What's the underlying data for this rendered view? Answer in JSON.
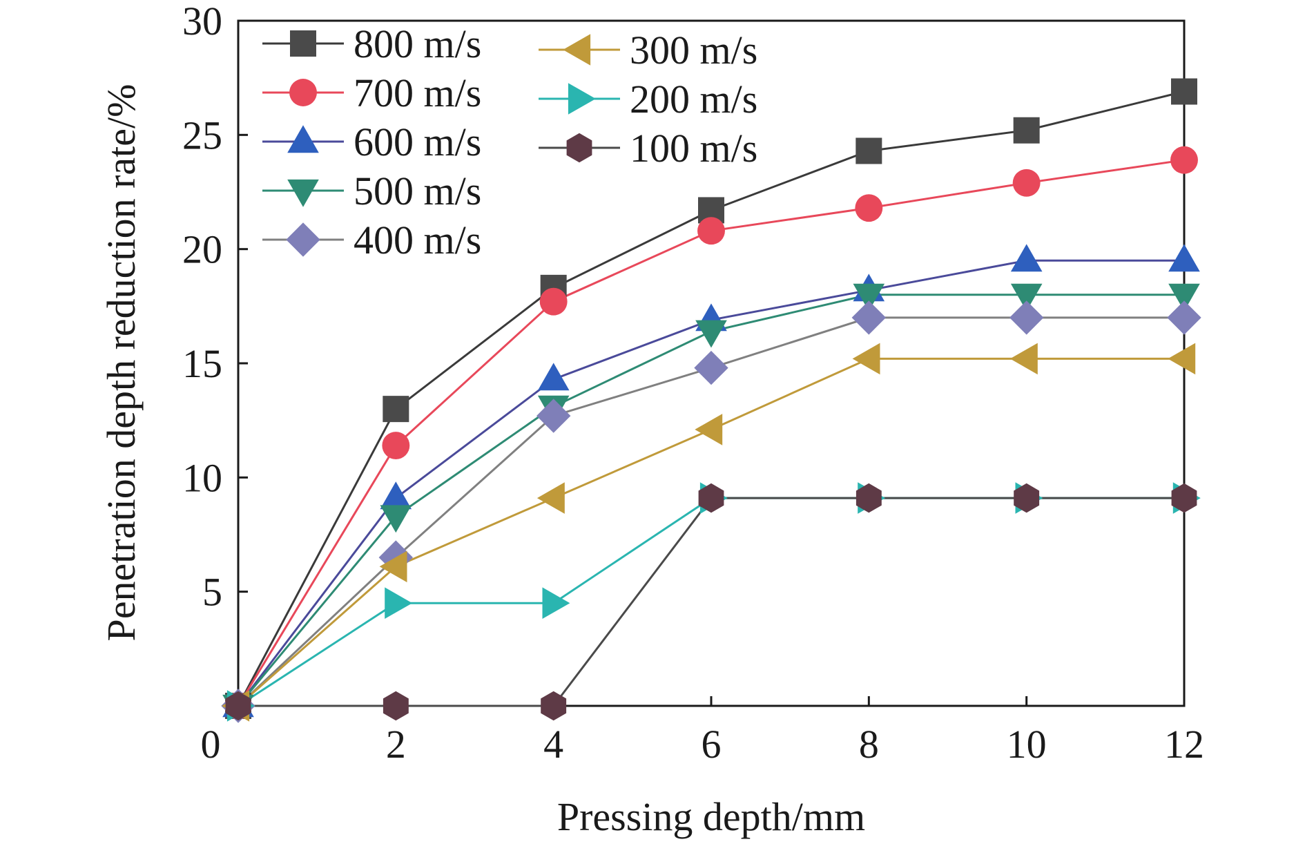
{
  "chart_data": {
    "type": "line",
    "title": "",
    "xlabel": "Pressing depth/mm",
    "ylabel": "Penetration depth reduction rate/%",
    "xlim": [
      0,
      12
    ],
    "ylim": [
      0,
      30
    ],
    "x_ticks": [
      0,
      2,
      4,
      6,
      8,
      10,
      12
    ],
    "y_ticks": [
      5,
      10,
      15,
      20,
      25,
      30
    ],
    "origin_label": "0",
    "grid": false,
    "legend_position": "top-left",
    "x": [
      0,
      2,
      4,
      6,
      8,
      10,
      12
    ],
    "series": [
      {
        "name": "800 m/s",
        "marker": "square",
        "color": "#4a4a4a",
        "values": [
          0,
          13.0,
          18.3,
          21.7,
          24.3,
          25.2,
          26.9
        ]
      },
      {
        "name": "700 m/s",
        "marker": "circle",
        "color": "#e8485a",
        "values": [
          0,
          11.4,
          17.7,
          20.8,
          21.8,
          22.9,
          23.9
        ]
      },
      {
        "name": "600 m/s",
        "marker": "triangle-up",
        "color": "#2e5fbe",
        "values": [
          0,
          9.1,
          14.3,
          16.9,
          18.2,
          19.5,
          19.5
        ]
      },
      {
        "name": "500 m/s",
        "marker": "triangle-down",
        "color": "#2e8b74",
        "values": [
          0,
          8.3,
          13.1,
          16.4,
          18.0,
          18.0,
          18.0
        ]
      },
      {
        "name": "400 m/s",
        "marker": "diamond",
        "color": "#7f7fb8",
        "values": [
          0,
          6.5,
          12.7,
          14.8,
          17.0,
          17.0,
          17.0
        ]
      },
      {
        "name": "300 m/s",
        "marker": "triangle-left",
        "color": "#c09a3a",
        "values": [
          0,
          6.1,
          9.1,
          12.1,
          15.2,
          15.2,
          15.2
        ]
      },
      {
        "name": "200 m/s",
        "marker": "triangle-right",
        "color": "#2ab5b0",
        "values": [
          0,
          4.5,
          4.5,
          9.1,
          9.1,
          9.1,
          9.1
        ]
      },
      {
        "name": "100 m/s",
        "marker": "hexagon",
        "color": "#5e3a46",
        "values": [
          0,
          0,
          0,
          9.1,
          9.1,
          9.1,
          9.1
        ]
      }
    ],
    "line_colors": {
      "800 m/s": "#3a3a3a",
      "700 m/s": "#e8485a",
      "600 m/s": "#4a4a9a",
      "500 m/s": "#2e8b74",
      "400 m/s": "#808080",
      "300 m/s": "#c09a3a",
      "200 m/s": "#2ab5b0",
      "100 m/s": "#4a4a4a"
    }
  }
}
